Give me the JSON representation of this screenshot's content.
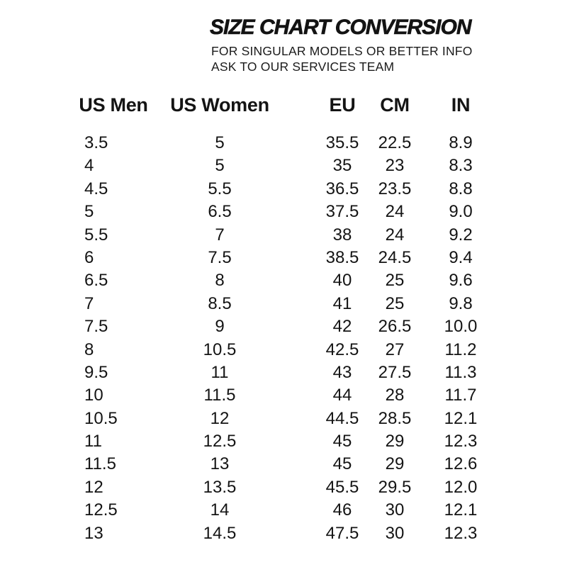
{
  "page": {
    "background": "#ffffff",
    "text_color": "#141414"
  },
  "header": {
    "title": "SIZE CHART CONVERSION",
    "subtitle_line1": "FOR SINGULAR MODELS OR BETTER INFO",
    "subtitle_line2": "ASK TO OUR SERVICES TEAM"
  },
  "chart_data": {
    "type": "table",
    "title": "SIZE CHART CONVERSION",
    "columns": [
      "US Men",
      "US Women",
      "EU",
      "CM",
      "IN"
    ],
    "rows": [
      [
        "3.5",
        "5",
        "35.5",
        "22.5",
        "8.9"
      ],
      [
        "4",
        "5",
        "35",
        "23",
        "8.3"
      ],
      [
        "4.5",
        "5.5",
        "36.5",
        "23.5",
        "8.8"
      ],
      [
        "5",
        "6.5",
        "37.5",
        "24",
        "9.0"
      ],
      [
        "5.5",
        "7",
        "38",
        "24",
        "9.2"
      ],
      [
        "6",
        "7.5",
        "38.5",
        "24.5",
        "9.4"
      ],
      [
        "6.5",
        "8",
        "40",
        "25",
        "9.6"
      ],
      [
        "7",
        "8.5",
        "41",
        "25",
        "9.8"
      ],
      [
        "7.5",
        "9",
        "42",
        "26.5",
        "10.0"
      ],
      [
        "8",
        "10.5",
        "42.5",
        "27",
        "11.2"
      ],
      [
        "9.5",
        "11",
        "43",
        "27.5",
        "11.3"
      ],
      [
        "10",
        "11.5",
        "44",
        "28",
        "11.7"
      ],
      [
        "10.5",
        "12",
        "44.5",
        "28.5",
        "12.1"
      ],
      [
        "11",
        "12.5",
        "45",
        "29",
        "12.3"
      ],
      [
        "11.5",
        "13",
        "45",
        "29",
        "12.6"
      ],
      [
        "12",
        "13.5",
        "45.5",
        "29.5",
        "12.0"
      ],
      [
        "12.5",
        "14",
        "46",
        "30",
        "12.1"
      ],
      [
        "13",
        "14.5",
        "47.5",
        "30",
        "12.3"
      ]
    ]
  }
}
